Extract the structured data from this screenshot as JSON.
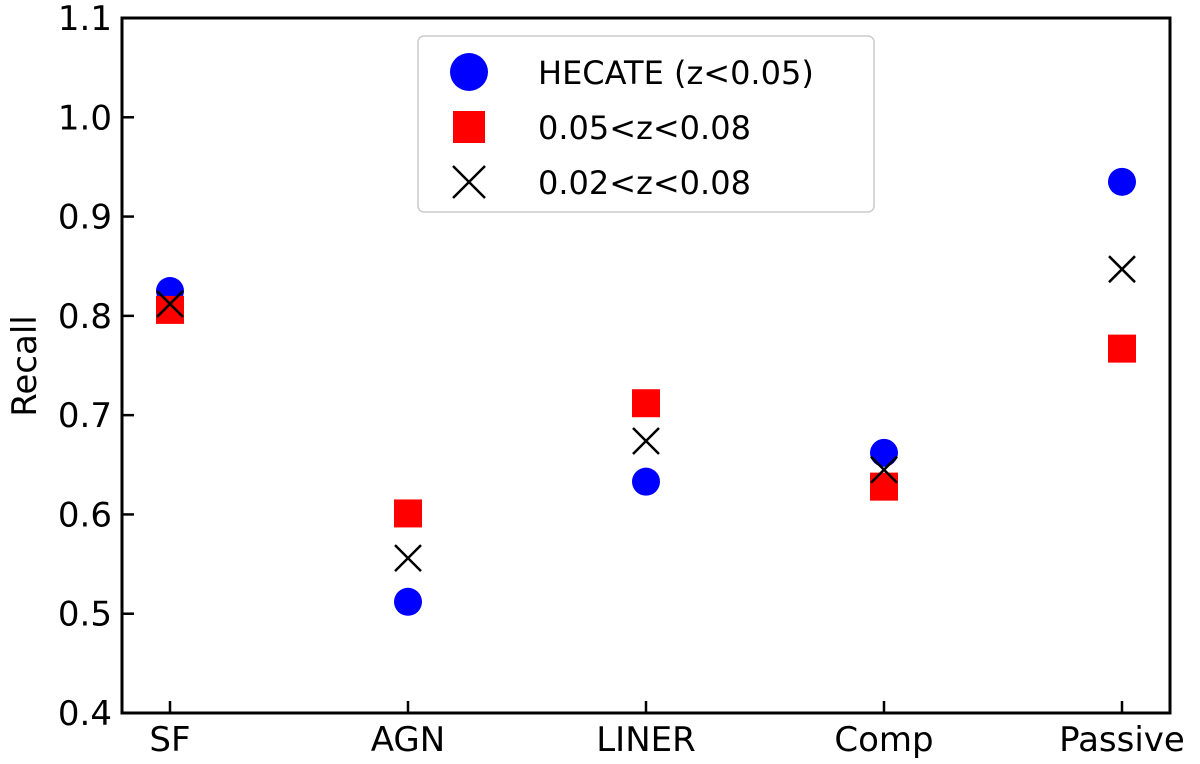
{
  "chart_data": {
    "type": "scatter",
    "ylabel": "Recall",
    "xlabel": "",
    "categories": [
      "SF",
      "AGN",
      "LINER",
      "Comp",
      "Passive"
    ],
    "ylim": [
      0.4,
      1.1
    ],
    "yticks": [
      "0.4",
      "0.5",
      "0.6",
      "0.7",
      "0.8",
      "0.9",
      "1.0",
      "1.1"
    ],
    "grid": false,
    "legend_position": "top-center",
    "series": [
      {
        "name": "HECATE (z<0.05)",
        "marker": "circle",
        "color": "#0000ff",
        "values": [
          0.825,
          0.512,
          0.633,
          0.662,
          0.935
        ]
      },
      {
        "name": "0.05<z<0.08",
        "marker": "square",
        "color": "#ff0000",
        "values": [
          0.806,
          0.601,
          0.712,
          0.628,
          0.767
        ]
      },
      {
        "name": "0.02<z<0.08",
        "marker": "x",
        "color": "#000000",
        "values": [
          0.812,
          0.556,
          0.674,
          0.645,
          0.847
        ]
      }
    ]
  }
}
